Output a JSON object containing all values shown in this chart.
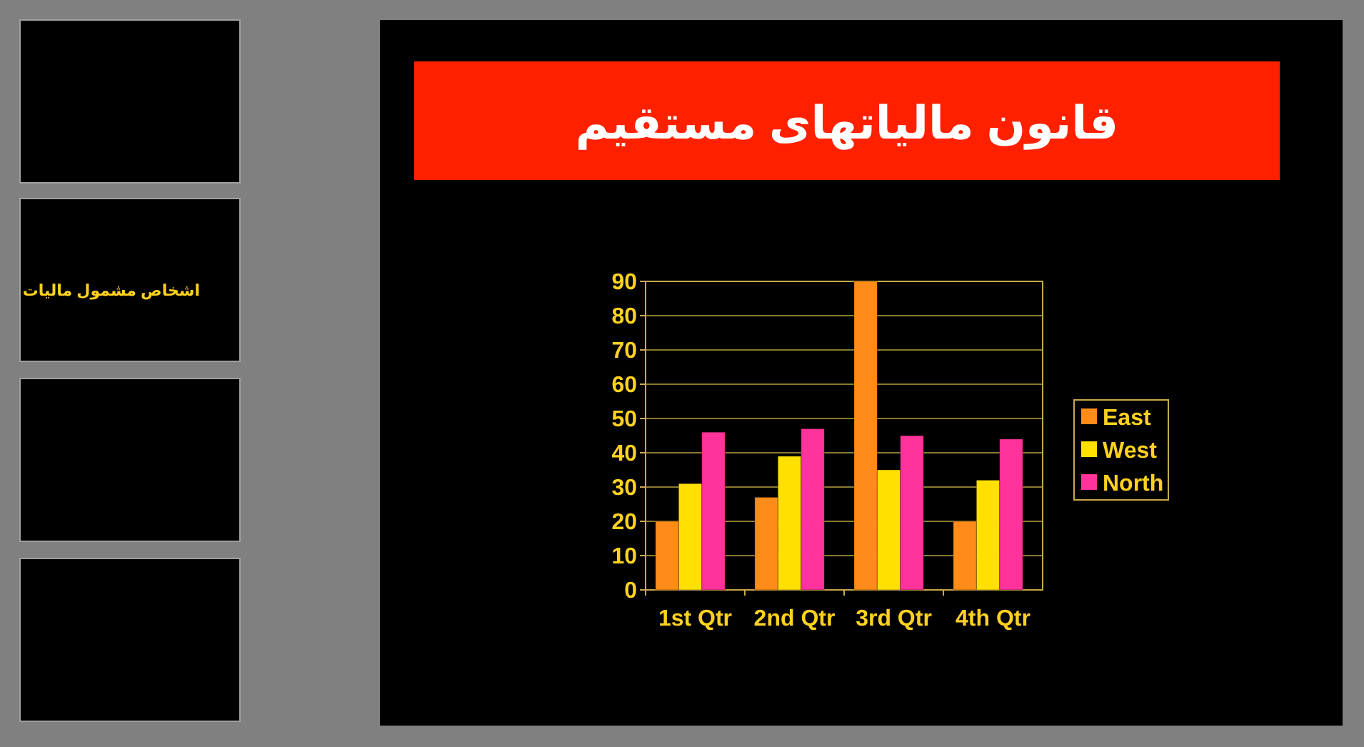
{
  "chart_data": {
    "type": "bar",
    "title": "قانون مالیاتهای مستقیم",
    "categories": [
      "1st Qtr",
      "2nd Qtr",
      "3rd Qtr",
      "4th Qtr"
    ],
    "series": [
      {
        "name": "East",
        "color": "#ff8c1a",
        "values": [
          20,
          27,
          90,
          20
        ]
      },
      {
        "name": "West",
        "color": "#ffe000",
        "values": [
          31,
          39,
          35,
          32
        ]
      },
      {
        "name": "North",
        "color": "#ff3399",
        "values": [
          46,
          47,
          45,
          44
        ]
      }
    ],
    "ylim": [
      0,
      90
    ],
    "yticks": [
      0,
      10,
      20,
      30,
      40,
      50,
      60,
      70,
      80,
      90
    ],
    "grid": "y",
    "legend": "right",
    "annotations": [
      "اشخاص مشمول ماليات"
    ]
  }
}
